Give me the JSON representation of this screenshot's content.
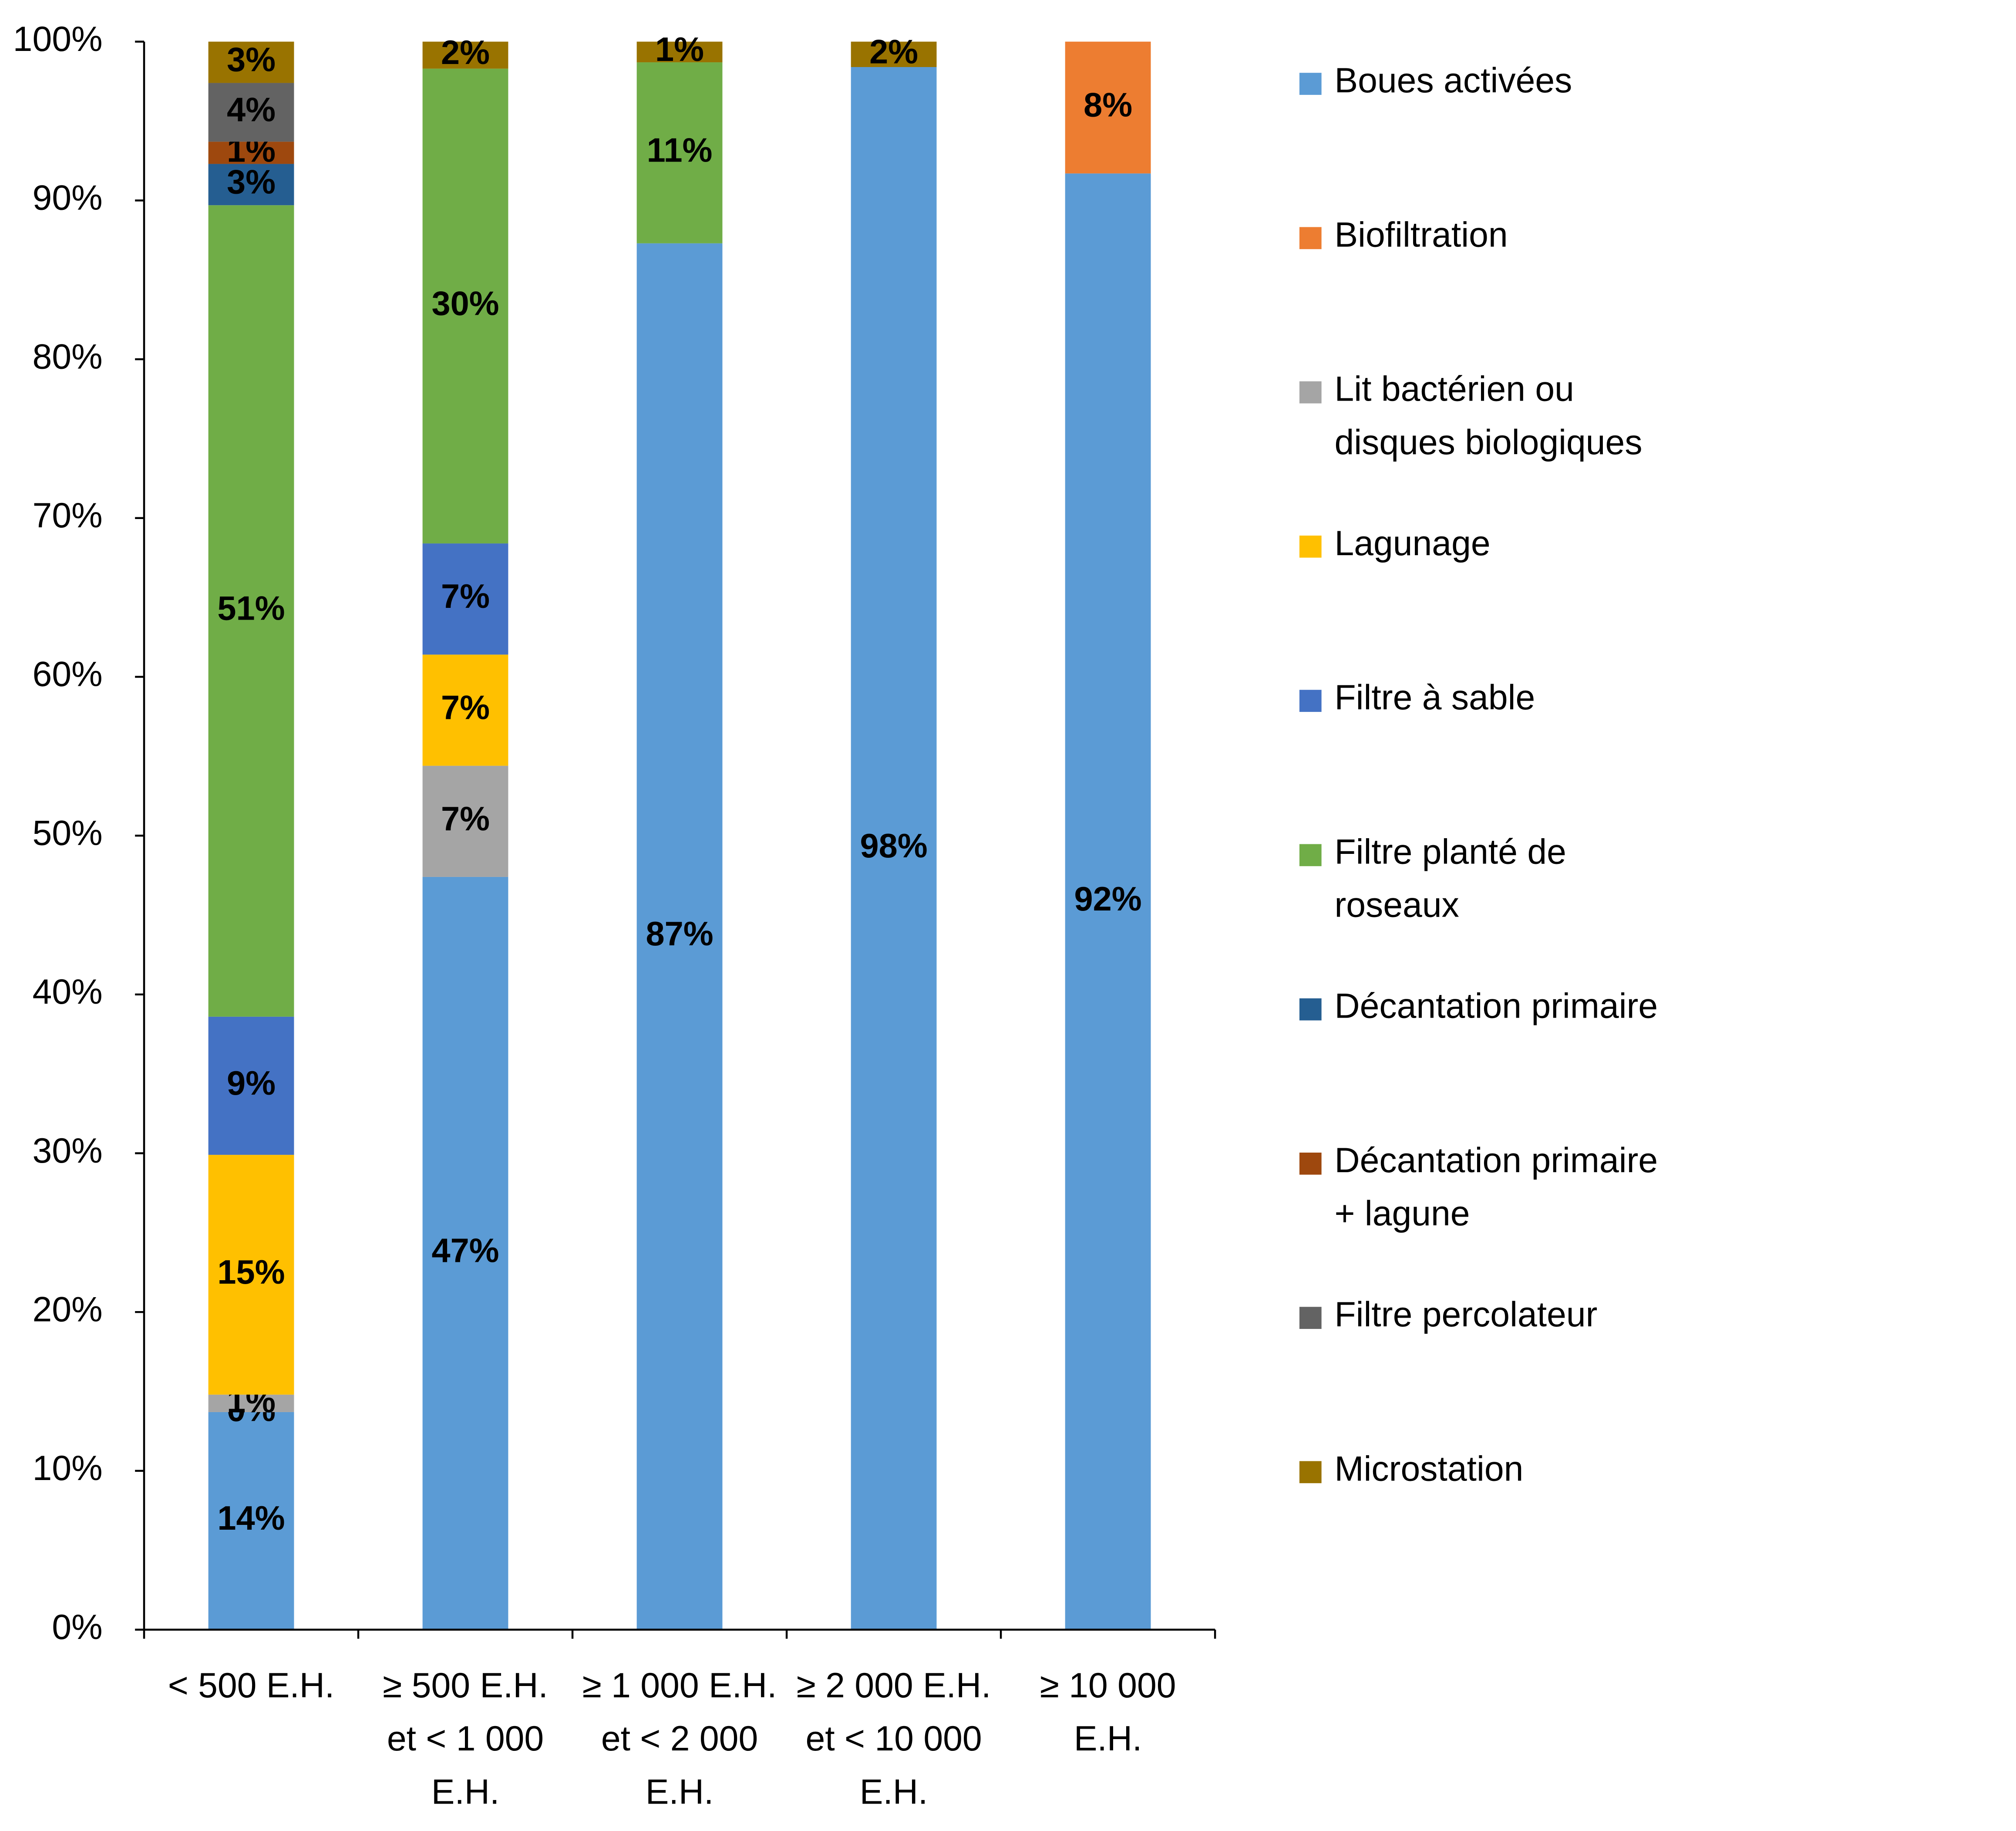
{
  "chart_data": {
    "type": "stacked-bar",
    "categories": [
      "< 500 E.H.",
      "≥ 500 E.H. et < 1 000 E.H.",
      "≥ 1 000 E.H. et < 2 000 E.H.",
      "≥ 2 000 E.H. et < 10 000 E.H.",
      "≥ 10 000 E.H."
    ],
    "ylim": [
      0,
      100
    ],
    "yticks": [
      {
        "value": 0,
        "label": "0%"
      },
      {
        "value": 10,
        "label": "10%"
      },
      {
        "value": 20,
        "label": "20%"
      },
      {
        "value": 30,
        "label": "30%"
      },
      {
        "value": 40,
        "label": "40%"
      },
      {
        "value": 50,
        "label": "50%"
      },
      {
        "value": 60,
        "label": "60%"
      },
      {
        "value": 70,
        "label": "70%"
      },
      {
        "value": 80,
        "label": "80%"
      },
      {
        "value": 90,
        "label": "90%"
      },
      {
        "value": 100,
        "label": "100%"
      }
    ],
    "legend": "right",
    "series": [
      {
        "name": "Boues activées",
        "color": "#5b9bd5",
        "values": [
          13.7,
          47.4,
          87.3,
          98.4,
          91.7
        ],
        "value_labels": [
          "14%",
          "47%",
          "87%",
          "98%",
          "92%"
        ]
      },
      {
        "name": "Biofiltration",
        "color": "#ed7d31",
        "values": [
          0,
          null,
          null,
          null,
          8.3
        ],
        "value_labels": [
          "0%",
          null,
          null,
          null,
          "8%"
        ]
      },
      {
        "name": "Lit bactérien ou disques biologiques",
        "color": "#a5a5a5",
        "values": [
          1.1,
          7.0,
          null,
          null,
          null
        ],
        "value_labels": [
          "1%",
          "7%",
          null,
          null,
          null
        ]
      },
      {
        "name": "Lagunage",
        "color": "#ffc000",
        "values": [
          15.1,
          7.0,
          null,
          null,
          null
        ],
        "value_labels": [
          "15%",
          "7%",
          null,
          null,
          null
        ]
      },
      {
        "name": "Filtre à sable",
        "color": "#4472c4",
        "values": [
          8.7,
          7.0,
          null,
          null,
          null
        ],
        "value_labels": [
          "9%",
          "7%",
          null,
          null,
          null
        ]
      },
      {
        "name": "Filtre planté de roseaux",
        "color": "#70ad47",
        "values": [
          51.1,
          29.9,
          11.4,
          null,
          null
        ],
        "value_labels": [
          "51%",
          "30%",
          "11%",
          null,
          null
        ]
      },
      {
        "name": "Décantation primaire",
        "color": "#255e91",
        "values": [
          2.6,
          null,
          null,
          null,
          null
        ],
        "value_labels": [
          "3%",
          null,
          null,
          null,
          null
        ]
      },
      {
        "name": "Décantation primaire + lagune",
        "color": "#9e480e",
        "values": [
          1.4,
          null,
          null,
          null,
          null
        ],
        "value_labels": [
          "1%",
          null,
          null,
          null,
          null
        ]
      },
      {
        "name": "Filtre percolateur",
        "color": "#636363",
        "values": [
          3.7,
          null,
          null,
          null,
          null
        ],
        "value_labels": [
          "4%",
          null,
          null,
          null,
          null
        ]
      },
      {
        "name": "Microstation",
        "color": "#997300",
        "values": [
          2.6,
          1.7,
          1.3,
          1.6,
          null
        ],
        "value_labels": [
          "3%",
          "2%",
          "1%",
          "2%",
          null
        ]
      }
    ]
  }
}
